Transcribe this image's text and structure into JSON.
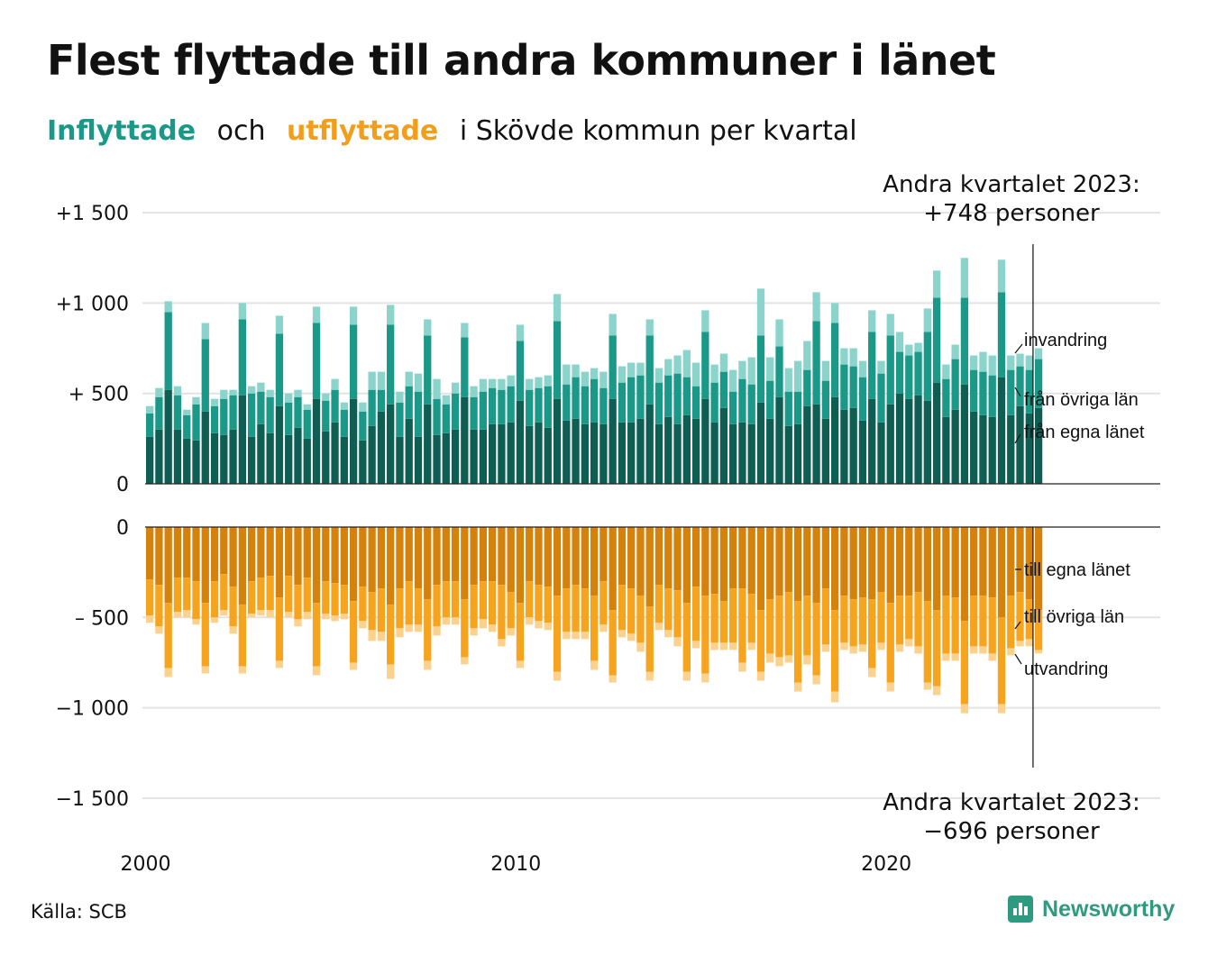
{
  "title": "Flest flyttade till andra kommuner i länet",
  "subtitle": {
    "part1": "Inflyttade",
    "part2": "och",
    "part3": "utflyttade",
    "part4": "i Skövde kommun per kvartal"
  },
  "colors": {
    "in_own": "#0f5e53",
    "in_other": "#1a9988",
    "in_imm": "#8ad4cb",
    "out_own": "#d4820c",
    "out_other": "#f6a31e",
    "out_emig": "#fbd18e",
    "grid": "#e3e3e3",
    "axis": "#222222"
  },
  "source": "Källa: SCB",
  "logo": "Newsworthy",
  "annotations": {
    "top_line1": "Andra kvartalet 2023:",
    "top_line2": "+748 personer",
    "bottom_line1": "Andra kvartalet 2023:",
    "bottom_line2": "−696 personer"
  },
  "chart_data": {
    "type": "bar",
    "stacked": true,
    "x_start": "2000 Q1",
    "x_end": "2023 Q2",
    "x_ticks": [
      "2000",
      "2010",
      "2020"
    ],
    "y_ticks": [
      "+1 500",
      "+1 000",
      "+  500",
      "0",
      "0",
      "–  500",
      "−1 000",
      "−1 500"
    ],
    "grid": true,
    "inflyttade": {
      "series_labels": [
        "från egna länet",
        "från övriga län",
        "invandring"
      ],
      "own": [
        260,
        300,
        520,
        300,
        250,
        240,
        400,
        280,
        270,
        300,
        490,
        260,
        330,
        280,
        430,
        270,
        310,
        250,
        470,
        290,
        340,
        260,
        470,
        240,
        320,
        400,
        440,
        260,
        360,
        260,
        440,
        270,
        280,
        300,
        480,
        300,
        300,
        330,
        330,
        340,
        460,
        320,
        340,
        310,
        470,
        350,
        360,
        330,
        340,
        330,
        470,
        340,
        340,
        360,
        440,
        330,
        370,
        330,
        380,
        360,
        470,
        340,
        420,
        330,
        340,
        330,
        450,
        360,
        480,
        320,
        330,
        430,
        440,
        360,
        480,
        410,
        420,
        350,
        470,
        340,
        440,
        500,
        470,
        490,
        460,
        560,
        370,
        410,
        550,
        400,
        380,
        370,
        590,
        380,
        430,
        390,
        420
      ],
      "other": [
        130,
        180,
        430,
        190,
        130,
        200,
        400,
        150,
        200,
        190,
        420,
        240,
        180,
        200,
        400,
        180,
        170,
        160,
        420,
        170,
        180,
        150,
        410,
        160,
        200,
        120,
        440,
        190,
        180,
        250,
        380,
        200,
        160,
        200,
        330,
        180,
        210,
        200,
        190,
        200,
        330,
        200,
        190,
        230,
        430,
        200,
        230,
        210,
        240,
        200,
        350,
        220,
        250,
        240,
        380,
        230,
        230,
        280,
        210,
        180,
        370,
        220,
        200,
        180,
        240,
        220,
        370,
        210,
        280,
        190,
        180,
        200,
        460,
        210,
        410,
        250,
        230,
        240,
        370,
        270,
        380,
        230,
        240,
        240,
        380,
        470,
        210,
        280,
        480,
        230,
        240,
        230,
        470,
        250,
        220,
        240,
        270
      ],
      "imm": [
        40,
        50,
        60,
        50,
        30,
        40,
        90,
        40,
        50,
        30,
        90,
        40,
        50,
        40,
        100,
        50,
        40,
        30,
        90,
        40,
        60,
        40,
        100,
        50,
        100,
        100,
        110,
        60,
        80,
        100,
        90,
        110,
        50,
        60,
        80,
        60,
        70,
        50,
        60,
        60,
        90,
        60,
        60,
        60,
        150,
        110,
        70,
        80,
        60,
        90,
        120,
        90,
        80,
        70,
        90,
        80,
        90,
        100,
        150,
        130,
        120,
        100,
        100,
        120,
        100,
        150,
        260,
        130,
        150,
        130,
        170,
        160,
        160,
        110,
        110,
        90,
        100,
        90,
        120,
        70,
        120,
        110,
        60,
        50,
        130,
        150,
        80,
        80,
        220,
        80,
        110,
        110,
        180,
        80,
        70,
        80,
        60
      ]
    },
    "utflyttade": {
      "series_labels": [
        "till egna länet",
        "till övriga län",
        "utvandring"
      ],
      "own": [
        -290,
        -320,
        -420,
        -280,
        -280,
        -300,
        -420,
        -300,
        -260,
        -330,
        -430,
        -300,
        -280,
        -270,
        -390,
        -270,
        -320,
        -280,
        -420,
        -300,
        -310,
        -320,
        -410,
        -330,
        -360,
        -340,
        -430,
        -340,
        -300,
        -340,
        -400,
        -320,
        -300,
        -300,
        -400,
        -320,
        -300,
        -300,
        -320,
        -360,
        -420,
        -300,
        -320,
        -330,
        -380,
        -340,
        -320,
        -340,
        -380,
        -300,
        -460,
        -320,
        -340,
        -380,
        -440,
        -320,
        -340,
        -350,
        -420,
        -330,
        -380,
        -370,
        -410,
        -340,
        -340,
        -370,
        -460,
        -400,
        -380,
        -360,
        -410,
        -380,
        -420,
        -340,
        -460,
        -380,
        -400,
        -390,
        -400,
        -360,
        -420,
        -380,
        -380,
        -360,
        -410,
        -460,
        -380,
        -390,
        -520,
        -380,
        -380,
        -390,
        -500,
        -380,
        -360,
        -400,
        -460
      ],
      "other": [
        -200,
        -230,
        -360,
        -190,
        -180,
        -210,
        -350,
        -200,
        -200,
        -220,
        -340,
        -180,
        -180,
        -190,
        -350,
        -200,
        -190,
        -190,
        -350,
        -180,
        -180,
        -160,
        -340,
        -190,
        -210,
        -240,
        -330,
        -220,
        -240,
        -200,
        -340,
        -230,
        -200,
        -200,
        -320,
        -240,
        -210,
        -240,
        -300,
        -200,
        -320,
        -200,
        -200,
        -200,
        -420,
        -240,
        -260,
        -240,
        -360,
        -240,
        -360,
        -250,
        -250,
        -260,
        -360,
        -210,
        -230,
        -260,
        -380,
        -300,
        -430,
        -270,
        -230,
        -300,
        -410,
        -270,
        -340,
        -300,
        -340,
        -350,
        -450,
        -330,
        -400,
        -310,
        -450,
        -260,
        -260,
        -260,
        -380,
        -280,
        -440,
        -270,
        -240,
        -300,
        -450,
        -420,
        -320,
        -310,
        -460,
        -280,
        -280,
        -310,
        -480,
        -290,
        -270,
        -220,
        -220
      ],
      "emig": [
        -40,
        -40,
        -50,
        -30,
        -40,
        -30,
        -40,
        -30,
        -30,
        -40,
        -40,
        -20,
        -30,
        -40,
        -40,
        -30,
        -40,
        -40,
        -50,
        -30,
        -30,
        -30,
        -40,
        -40,
        -60,
        -50,
        -80,
        -50,
        -40,
        -40,
        -50,
        -50,
        -40,
        -40,
        -40,
        -40,
        -50,
        -40,
        -40,
        -40,
        -40,
        -40,
        -40,
        -40,
        -50,
        -40,
        -40,
        -40,
        -50,
        -40,
        -40,
        -40,
        -40,
        -50,
        -50,
        -40,
        -40,
        -50,
        -50,
        -40,
        -50,
        -40,
        -40,
        -40,
        -50,
        -40,
        -50,
        -50,
        -50,
        -40,
        -50,
        -50,
        -50,
        -40,
        -60,
        -40,
        -40,
        -40,
        -50,
        -40,
        -50,
        -40,
        -40,
        -40,
        -40,
        -50,
        -40,
        -40,
        -50,
        -40,
        -40,
        -40,
        -50,
        -40,
        -30,
        -40,
        -20
      ]
    }
  }
}
